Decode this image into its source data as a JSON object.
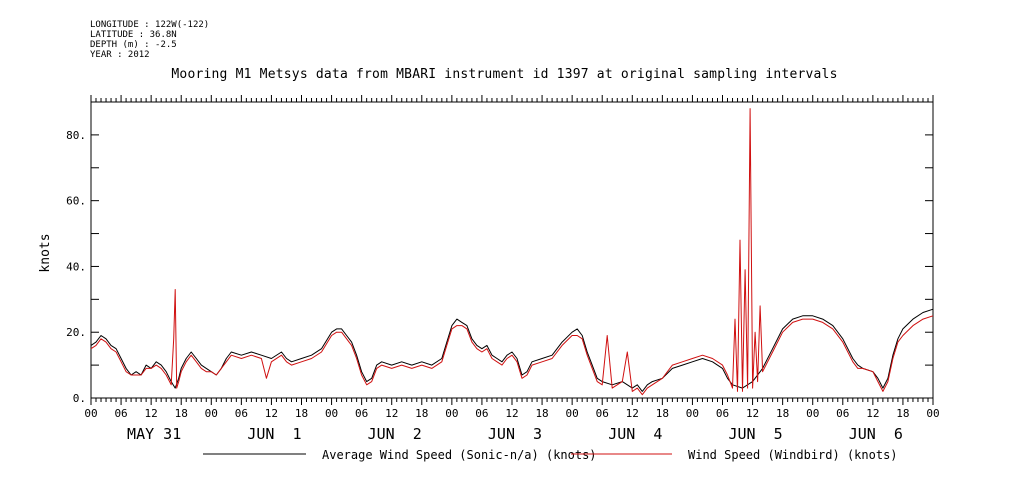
{
  "metadata": [
    "LONGITUDE : 122W(-122)",
    "LATITUDE : 36.8N",
    "DEPTH (m) : -2.5",
    "YEAR : 2012"
  ],
  "chart_data": {
    "type": "line",
    "title": "Mooring M1 Metsys data from MBARI instrument id 1397 at original sampling intervals",
    "ylabel": "knots",
    "xlabel": "",
    "ylim": [
      0,
      90
    ],
    "yticks": [
      0,
      20,
      40,
      60,
      80
    ],
    "ytick_labels": [
      "0.",
      "20.",
      "40.",
      "60.",
      "80."
    ],
    "xlim_hours": [
      0,
      168
    ],
    "hour_tick_labels": [
      "00",
      "06",
      "12",
      "18",
      "00",
      "06",
      "12",
      "18",
      "00",
      "06",
      "12",
      "18",
      "00",
      "06",
      "12",
      "18",
      "00",
      "06",
      "12",
      "18",
      "00",
      "06",
      "12",
      "18",
      "00",
      "06",
      "12",
      "18",
      "00"
    ],
    "day_labels": [
      "MAY 31",
      "JUN  1",
      "JUN  2",
      "JUN  3",
      "JUN  4",
      "JUN  5",
      "JUN  6"
    ],
    "x_unit": "hours since 00:00 May 31 2012",
    "legend_position": "bottom",
    "series": [
      {
        "name": "Average Wind Speed (Sonic-n/a) (knots)",
        "color": "#000000",
        "points": [
          [
            0,
            16
          ],
          [
            1,
            17
          ],
          [
            2,
            19
          ],
          [
            3,
            18
          ],
          [
            4,
            16
          ],
          [
            5,
            15
          ],
          [
            6,
            12
          ],
          [
            7,
            9
          ],
          [
            8,
            7
          ],
          [
            9,
            8
          ],
          [
            10,
            7
          ],
          [
            11,
            10
          ],
          [
            12,
            9
          ],
          [
            13,
            11
          ],
          [
            14,
            10
          ],
          [
            15,
            8
          ],
          [
            16,
            5
          ],
          [
            16.8,
            3
          ],
          [
            17.5,
            6
          ],
          [
            18,
            9
          ],
          [
            19,
            12
          ],
          [
            20,
            14
          ],
          [
            21,
            12
          ],
          [
            22,
            10
          ],
          [
            23,
            9
          ],
          [
            24,
            8
          ],
          [
            25,
            7
          ],
          [
            26,
            9
          ],
          [
            27,
            12
          ],
          [
            28,
            14
          ],
          [
            30,
            13
          ],
          [
            32,
            14
          ],
          [
            34,
            13
          ],
          [
            36,
            12
          ],
          [
            38,
            14
          ],
          [
            39,
            12
          ],
          [
            40,
            11
          ],
          [
            42,
            12
          ],
          [
            44,
            13
          ],
          [
            46,
            15
          ],
          [
            48,
            20
          ],
          [
            49,
            21
          ],
          [
            50,
            21
          ],
          [
            51,
            19
          ],
          [
            52,
            17
          ],
          [
            53,
            13
          ],
          [
            54,
            8
          ],
          [
            55,
            5
          ],
          [
            56,
            6
          ],
          [
            57,
            10
          ],
          [
            58,
            11
          ],
          [
            60,
            10
          ],
          [
            62,
            11
          ],
          [
            64,
            10
          ],
          [
            66,
            11
          ],
          [
            68,
            10
          ],
          [
            70,
            12
          ],
          [
            71,
            17
          ],
          [
            72,
            22
          ],
          [
            73,
            24
          ],
          [
            74,
            23
          ],
          [
            75,
            22
          ],
          [
            76,
            18
          ],
          [
            77,
            16
          ],
          [
            78,
            15
          ],
          [
            79,
            16
          ],
          [
            80,
            13
          ],
          [
            81,
            12
          ],
          [
            82,
            11
          ],
          [
            83,
            13
          ],
          [
            84,
            14
          ],
          [
            85,
            12
          ],
          [
            86,
            7
          ],
          [
            87,
            8
          ],
          [
            88,
            11
          ],
          [
            90,
            12
          ],
          [
            92,
            13
          ],
          [
            94,
            17
          ],
          [
            96,
            20
          ],
          [
            97,
            21
          ],
          [
            98,
            19
          ],
          [
            99,
            14
          ],
          [
            100,
            10
          ],
          [
            101,
            6
          ],
          [
            102,
            5
          ],
          [
            104,
            4
          ],
          [
            106,
            5
          ],
          [
            108,
            3
          ],
          [
            109,
            4
          ],
          [
            110,
            2
          ],
          [
            111,
            4
          ],
          [
            112,
            5
          ],
          [
            114,
            6
          ],
          [
            116,
            9
          ],
          [
            118,
            10
          ],
          [
            120,
            11
          ],
          [
            122,
            12
          ],
          [
            124,
            11
          ],
          [
            126,
            9
          ],
          [
            127,
            6
          ],
          [
            128,
            4
          ],
          [
            130,
            3
          ],
          [
            132,
            5
          ],
          [
            134,
            9
          ],
          [
            136,
            15
          ],
          [
            138,
            21
          ],
          [
            140,
            24
          ],
          [
            142,
            25
          ],
          [
            144,
            25
          ],
          [
            146,
            24
          ],
          [
            148,
            22
          ],
          [
            150,
            18
          ],
          [
            152,
            12
          ],
          [
            153,
            10
          ],
          [
            154,
            9
          ],
          [
            156,
            8
          ],
          [
            157,
            6
          ],
          [
            158,
            3
          ],
          [
            159,
            6
          ],
          [
            160,
            13
          ],
          [
            161,
            18
          ],
          [
            162,
            21
          ],
          [
            164,
            24
          ],
          [
            166,
            26
          ],
          [
            168,
            27
          ]
        ]
      },
      {
        "name": "Wind Speed (Windbird) (knots)",
        "color": "#d01010",
        "points": [
          [
            0,
            15
          ],
          [
            1,
            16
          ],
          [
            2,
            18
          ],
          [
            3,
            17
          ],
          [
            4,
            15
          ],
          [
            5,
            14
          ],
          [
            6,
            11
          ],
          [
            7,
            8
          ],
          [
            8,
            7
          ],
          [
            9,
            7
          ],
          [
            10,
            7
          ],
          [
            11,
            9
          ],
          [
            12,
            9
          ],
          [
            13,
            10
          ],
          [
            14,
            9
          ],
          [
            15,
            7
          ],
          [
            16,
            4
          ],
          [
            16.5,
            18
          ],
          [
            16.8,
            33
          ],
          [
            17.1,
            3
          ],
          [
            17.5,
            5
          ],
          [
            18,
            8
          ],
          [
            19,
            11
          ],
          [
            20,
            13
          ],
          [
            21,
            11
          ],
          [
            22,
            9
          ],
          [
            23,
            8
          ],
          [
            24,
            8
          ],
          [
            25,
            7
          ],
          [
            26,
            9
          ],
          [
            27,
            11
          ],
          [
            28,
            13
          ],
          [
            30,
            12
          ],
          [
            32,
            13
          ],
          [
            34,
            12
          ],
          [
            35,
            6
          ],
          [
            36,
            11
          ],
          [
            38,
            13
          ],
          [
            39,
            11
          ],
          [
            40,
            10
          ],
          [
            42,
            11
          ],
          [
            44,
            12
          ],
          [
            46,
            14
          ],
          [
            48,
            19
          ],
          [
            49,
            20
          ],
          [
            50,
            20
          ],
          [
            51,
            18
          ],
          [
            52,
            16
          ],
          [
            53,
            12
          ],
          [
            54,
            7
          ],
          [
            55,
            4
          ],
          [
            56,
            5
          ],
          [
            57,
            9
          ],
          [
            58,
            10
          ],
          [
            60,
            9
          ],
          [
            62,
            10
          ],
          [
            64,
            9
          ],
          [
            66,
            10
          ],
          [
            68,
            9
          ],
          [
            70,
            11
          ],
          [
            71,
            16
          ],
          [
            72,
            21
          ],
          [
            73,
            22
          ],
          [
            74,
            22
          ],
          [
            75,
            21
          ],
          [
            76,
            17
          ],
          [
            77,
            15
          ],
          [
            78,
            14
          ],
          [
            79,
            15
          ],
          [
            80,
            12
          ],
          [
            81,
            11
          ],
          [
            82,
            10
          ],
          [
            83,
            12
          ],
          [
            84,
            13
          ],
          [
            85,
            11
          ],
          [
            86,
            6
          ],
          [
            87,
            7
          ],
          [
            88,
            10
          ],
          [
            90,
            11
          ],
          [
            92,
            12
          ],
          [
            94,
            16
          ],
          [
            96,
            19
          ],
          [
            97,
            19
          ],
          [
            98,
            18
          ],
          [
            99,
            13
          ],
          [
            100,
            9
          ],
          [
            101,
            5
          ],
          [
            102,
            4
          ],
          [
            103,
            19
          ],
          [
            104,
            3
          ],
          [
            106,
            5
          ],
          [
            107,
            14
          ],
          [
            108,
            2
          ],
          [
            109,
            3
          ],
          [
            110,
            1
          ],
          [
            111,
            3
          ],
          [
            112,
            4
          ],
          [
            114,
            6
          ],
          [
            116,
            10
          ],
          [
            118,
            11
          ],
          [
            120,
            12
          ],
          [
            122,
            13
          ],
          [
            124,
            12
          ],
          [
            126,
            10
          ],
          [
            127,
            7
          ],
          [
            128,
            3
          ],
          [
            128.5,
            24
          ],
          [
            129,
            2
          ],
          [
            129.5,
            48
          ],
          [
            130,
            2
          ],
          [
            130.5,
            39
          ],
          [
            131,
            3
          ],
          [
            131.5,
            88
          ],
          [
            132,
            3
          ],
          [
            132.5,
            20
          ],
          [
            133,
            5
          ],
          [
            133.5,
            28
          ],
          [
            134,
            8
          ],
          [
            136,
            14
          ],
          [
            138,
            20
          ],
          [
            140,
            23
          ],
          [
            142,
            24
          ],
          [
            144,
            24
          ],
          [
            146,
            23
          ],
          [
            148,
            21
          ],
          [
            150,
            17
          ],
          [
            152,
            11
          ],
          [
            153,
            9
          ],
          [
            154,
            9
          ],
          [
            156,
            8
          ],
          [
            157,
            5
          ],
          [
            158,
            2
          ],
          [
            159,
            5
          ],
          [
            160,
            12
          ],
          [
            161,
            17
          ],
          [
            162,
            19
          ],
          [
            164,
            22
          ],
          [
            166,
            24
          ],
          [
            168,
            25
          ]
        ]
      }
    ]
  }
}
